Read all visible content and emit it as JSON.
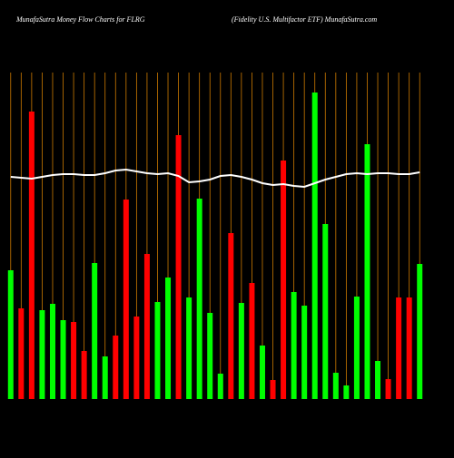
{
  "chart_data": {
    "type": "bar-line",
    "title": "MunafaSutra  Money Flow  Charts for FLRG",
    "subtitle": "(Fidelity U.S. Multifactor ETF) MunafaSutra.com",
    "ylim": [
      0,
      360
    ],
    "grid": true,
    "grid_color": "#cc7a00",
    "background": "#000000",
    "bar_values": [
      142,
      100,
      317,
      98,
      105,
      87,
      85,
      53,
      150,
      47,
      70,
      220,
      91,
      160,
      107,
      134,
      291,
      112,
      221,
      95,
      28,
      183,
      106,
      128,
      59,
      21,
      263,
      118,
      103,
      338,
      193,
      29,
      15,
      113,
      281,
      42,
      22,
      112,
      112,
      149
    ],
    "bar_colors": [
      "#00ff00",
      "#ff0000",
      "#ff0000",
      "#00ff00",
      "#00ff00",
      "#00ff00",
      "#ff0000",
      "#ff0000",
      "#00ff00",
      "#00ff00",
      "#ff0000",
      "#ff0000",
      "#ff0000",
      "#ff0000",
      "#00ff00",
      "#00ff00",
      "#ff0000",
      "#00ff00",
      "#00ff00",
      "#00ff00",
      "#00ff00",
      "#ff0000",
      "#00ff00",
      "#ff0000",
      "#00ff00",
      "#ff0000",
      "#ff0000",
      "#00ff00",
      "#00ff00",
      "#00ff00",
      "#00ff00",
      "#00ff00",
      "#00ff00",
      "#00ff00",
      "#00ff00",
      "#00ff00",
      "#ff0000",
      "#ff0000",
      "#ff0000",
      "#00ff00"
    ],
    "line_values": [
      245,
      244,
      243,
      245,
      247,
      248,
      248,
      247,
      247,
      249,
      252,
      253,
      251,
      249,
      248,
      249,
      246,
      239,
      240,
      242,
      246,
      247,
      245,
      242,
      238,
      236,
      237,
      235,
      234,
      238,
      242,
      245,
      248,
      249,
      248,
      249,
      249,
      248,
      248,
      250
    ],
    "line_color": "#ffffff"
  }
}
